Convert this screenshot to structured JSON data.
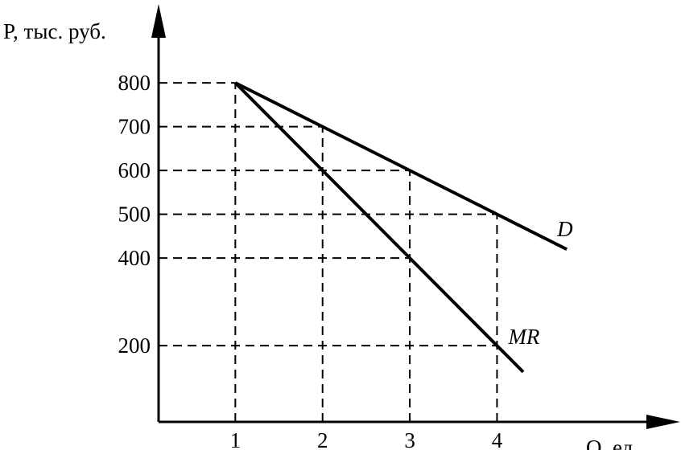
{
  "chart_data": {
    "type": "line",
    "y_label": "P, тыс. руб.",
    "x_label": "Q, ед.",
    "xlim": [
      0.12,
      6.1
    ],
    "ylim": [
      26,
      980
    ],
    "xticks": [
      1,
      2,
      3,
      4
    ],
    "yticks": [
      200,
      400,
      500,
      600,
      700,
      800
    ],
    "grid": true,
    "series": [
      {
        "name": "D",
        "color": "#000000",
        "x": [
          1,
          2,
          3,
          4,
          4.8
        ],
        "values": [
          800,
          700,
          600,
          500,
          420
        ]
      },
      {
        "name": "MR",
        "color": "#000000",
        "x": [
          1,
          2,
          3,
          4,
          4.3
        ],
        "values": [
          800,
          600,
          400,
          200,
          140
        ]
      }
    ]
  }
}
